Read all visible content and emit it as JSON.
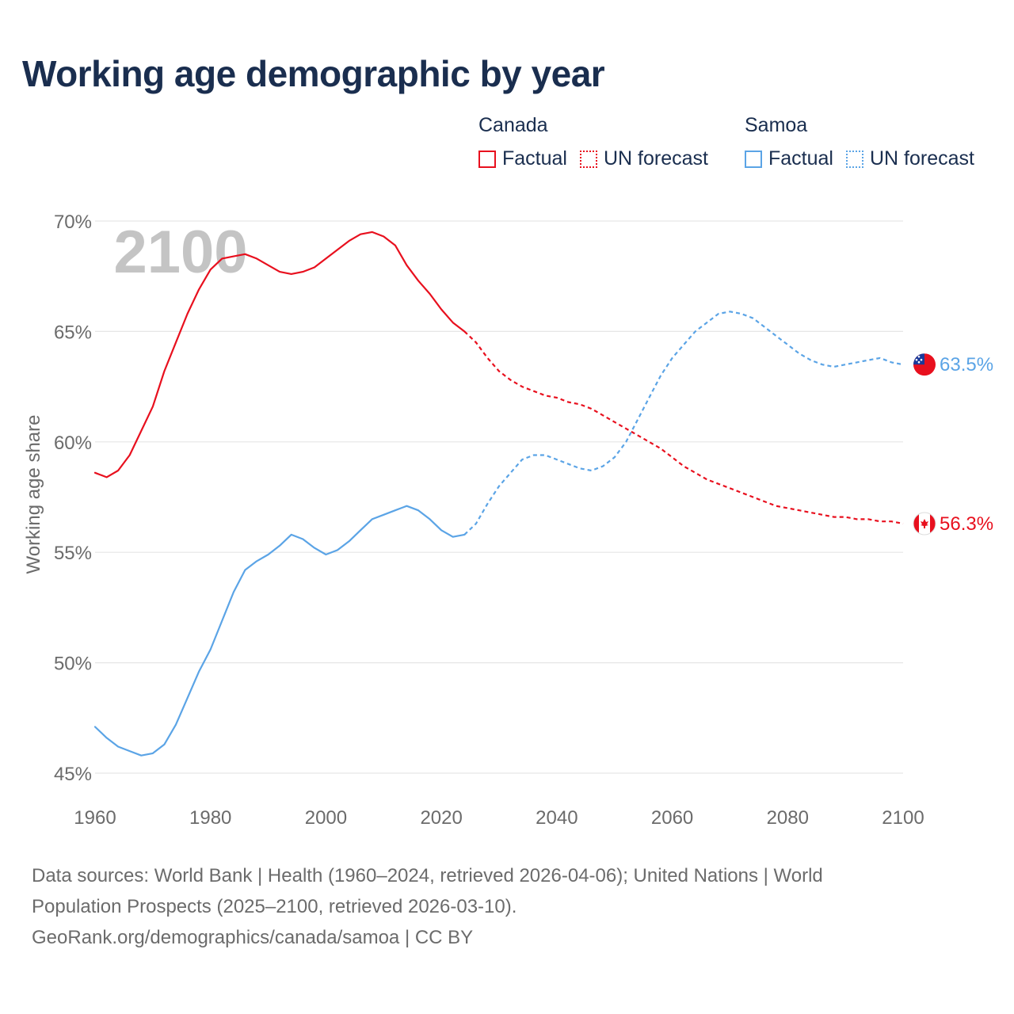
{
  "title": "Working age demographic by year",
  "colors": {
    "canada": "#e8101e",
    "samoa": "#5ba4e6",
    "grid": "#e6e6e6",
    "axis_text": "#6b6b6b",
    "watermark": "#c4c4c4"
  },
  "legend": {
    "canada": {
      "name": "Canada",
      "factual": "Factual",
      "forecast": "UN forecast"
    },
    "samoa": {
      "name": "Samoa",
      "factual": "Factual",
      "forecast": "UN forecast"
    }
  },
  "year_watermark": "2100",
  "end_labels": {
    "canada": "56.3%",
    "samoa": "63.5%"
  },
  "flags": {
    "canada": "canada-flag-icon",
    "samoa": "samoa-flag-icon"
  },
  "footer": {
    "line1": "Data sources: World Bank | Health (1960–2024, retrieved 2026-04-06); United Nations | World",
    "line2": "Population Prospects (2025–2100, retrieved 2026-03-10).",
    "line3": "GeoRank.org/demographics/canada/samoa | CC BY"
  },
  "chart_data": {
    "type": "line",
    "ylabel": "Working age share",
    "xlabel": "",
    "xlim": [
      1960,
      2100
    ],
    "ylim": [
      45,
      70
    ],
    "x_ticks": [
      "1960",
      "1980",
      "2000",
      "2020",
      "2040",
      "2060",
      "2080",
      "2100"
    ],
    "y_ticks": [
      "70%",
      "65%",
      "60%",
      "55%",
      "50%",
      "45%"
    ],
    "factual_range": [
      1960,
      2024
    ],
    "forecast_range": [
      2024,
      2100
    ],
    "series": [
      {
        "name": "Canada",
        "points": [
          [
            1960,
            58.6
          ],
          [
            1962,
            58.4
          ],
          [
            1964,
            58.7
          ],
          [
            1966,
            59.4
          ],
          [
            1968,
            60.5
          ],
          [
            1970,
            61.6
          ],
          [
            1972,
            63.2
          ],
          [
            1974,
            64.5
          ],
          [
            1976,
            65.8
          ],
          [
            1978,
            66.9
          ],
          [
            1980,
            67.8
          ],
          [
            1982,
            68.3
          ],
          [
            1984,
            68.4
          ],
          [
            1986,
            68.5
          ],
          [
            1988,
            68.3
          ],
          [
            1990,
            68.0
          ],
          [
            1992,
            67.7
          ],
          [
            1994,
            67.6
          ],
          [
            1996,
            67.7
          ],
          [
            1998,
            67.9
          ],
          [
            2000,
            68.3
          ],
          [
            2002,
            68.7
          ],
          [
            2004,
            69.1
          ],
          [
            2006,
            69.4
          ],
          [
            2008,
            69.5
          ],
          [
            2010,
            69.3
          ],
          [
            2012,
            68.9
          ],
          [
            2014,
            68.0
          ],
          [
            2016,
            67.3
          ],
          [
            2018,
            66.7
          ],
          [
            2020,
            66.0
          ],
          [
            2022,
            65.4
          ],
          [
            2024,
            65.0
          ],
          [
            2026,
            64.5
          ],
          [
            2028,
            63.8
          ],
          [
            2030,
            63.2
          ],
          [
            2032,
            62.8
          ],
          [
            2034,
            62.5
          ],
          [
            2036,
            62.3
          ],
          [
            2038,
            62.1
          ],
          [
            2040,
            62.0
          ],
          [
            2042,
            61.8
          ],
          [
            2044,
            61.7
          ],
          [
            2046,
            61.5
          ],
          [
            2048,
            61.2
          ],
          [
            2050,
            60.9
          ],
          [
            2052,
            60.6
          ],
          [
            2054,
            60.3
          ],
          [
            2056,
            60.0
          ],
          [
            2058,
            59.7
          ],
          [
            2060,
            59.3
          ],
          [
            2062,
            58.9
          ],
          [
            2064,
            58.6
          ],
          [
            2066,
            58.3
          ],
          [
            2068,
            58.1
          ],
          [
            2070,
            57.9
          ],
          [
            2072,
            57.7
          ],
          [
            2074,
            57.5
          ],
          [
            2076,
            57.3
          ],
          [
            2078,
            57.1
          ],
          [
            2080,
            57.0
          ],
          [
            2082,
            56.9
          ],
          [
            2084,
            56.8
          ],
          [
            2086,
            56.7
          ],
          [
            2088,
            56.6
          ],
          [
            2090,
            56.6
          ],
          [
            2092,
            56.5
          ],
          [
            2094,
            56.5
          ],
          [
            2096,
            56.4
          ],
          [
            2098,
            56.4
          ],
          [
            2100,
            56.3
          ]
        ]
      },
      {
        "name": "Samoa",
        "points": [
          [
            1960,
            47.1
          ],
          [
            1962,
            46.6
          ],
          [
            1964,
            46.2
          ],
          [
            1966,
            46.0
          ],
          [
            1968,
            45.8
          ],
          [
            1970,
            45.9
          ],
          [
            1972,
            46.3
          ],
          [
            1974,
            47.2
          ],
          [
            1976,
            48.4
          ],
          [
            1978,
            49.6
          ],
          [
            1980,
            50.6
          ],
          [
            1982,
            51.9
          ],
          [
            1984,
            53.2
          ],
          [
            1986,
            54.2
          ],
          [
            1988,
            54.6
          ],
          [
            1990,
            54.9
          ],
          [
            1992,
            55.3
          ],
          [
            1994,
            55.8
          ],
          [
            1996,
            55.6
          ],
          [
            1998,
            55.2
          ],
          [
            2000,
            54.9
          ],
          [
            2002,
            55.1
          ],
          [
            2004,
            55.5
          ],
          [
            2006,
            56.0
          ],
          [
            2008,
            56.5
          ],
          [
            2010,
            56.7
          ],
          [
            2012,
            56.9
          ],
          [
            2014,
            57.1
          ],
          [
            2016,
            56.9
          ],
          [
            2018,
            56.5
          ],
          [
            2020,
            56.0
          ],
          [
            2022,
            55.7
          ],
          [
            2024,
            55.8
          ],
          [
            2026,
            56.3
          ],
          [
            2028,
            57.2
          ],
          [
            2030,
            58.0
          ],
          [
            2032,
            58.6
          ],
          [
            2034,
            59.2
          ],
          [
            2036,
            59.4
          ],
          [
            2038,
            59.4
          ],
          [
            2040,
            59.2
          ],
          [
            2042,
            59.0
          ],
          [
            2044,
            58.8
          ],
          [
            2046,
            58.7
          ],
          [
            2048,
            58.9
          ],
          [
            2050,
            59.3
          ],
          [
            2052,
            60.0
          ],
          [
            2054,
            61.0
          ],
          [
            2056,
            62.0
          ],
          [
            2058,
            63.0
          ],
          [
            2060,
            63.8
          ],
          [
            2062,
            64.4
          ],
          [
            2064,
            65.0
          ],
          [
            2066,
            65.4
          ],
          [
            2068,
            65.8
          ],
          [
            2070,
            65.9
          ],
          [
            2072,
            65.8
          ],
          [
            2074,
            65.6
          ],
          [
            2076,
            65.2
          ],
          [
            2078,
            64.8
          ],
          [
            2080,
            64.4
          ],
          [
            2082,
            64.0
          ],
          [
            2084,
            63.7
          ],
          [
            2086,
            63.5
          ],
          [
            2088,
            63.4
          ],
          [
            2090,
            63.5
          ],
          [
            2092,
            63.6
          ],
          [
            2094,
            63.7
          ],
          [
            2096,
            63.8
          ],
          [
            2098,
            63.6
          ],
          [
            2100,
            63.5
          ]
        ]
      }
    ]
  }
}
